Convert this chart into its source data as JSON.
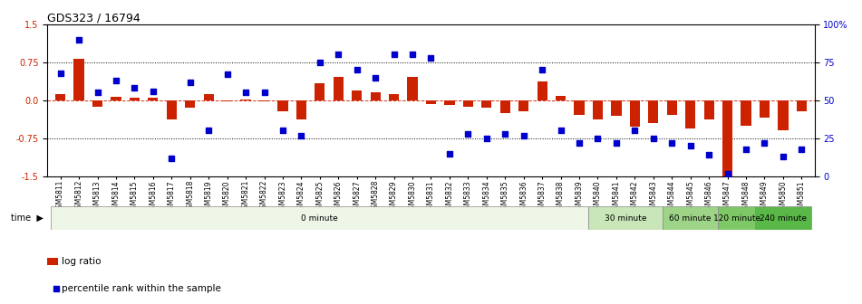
{
  "title": "GDS323 / 16794",
  "samples": [
    "GSM5811",
    "GSM5812",
    "GSM5813",
    "GSM5814",
    "GSM5815",
    "GSM5816",
    "GSM5817",
    "GSM5818",
    "GSM5819",
    "GSM5820",
    "GSM5821",
    "GSM5822",
    "GSM5823",
    "GSM5824",
    "GSM5825",
    "GSM5826",
    "GSM5827",
    "GSM5828",
    "GSM5829",
    "GSM5830",
    "GSM5831",
    "GSM5832",
    "GSM5833",
    "GSM5834",
    "GSM5835",
    "GSM5836",
    "GSM5837",
    "GSM5838",
    "GSM5839",
    "GSM5840",
    "GSM5841",
    "GSM5842",
    "GSM5843",
    "GSM5844",
    "GSM5845",
    "GSM5846",
    "GSM5847",
    "GSM5848",
    "GSM5849",
    "GSM5850",
    "GSM5851"
  ],
  "log_ratio": [
    0.12,
    0.82,
    -0.13,
    0.07,
    0.05,
    0.05,
    -0.38,
    -0.15,
    0.13,
    -0.02,
    0.02,
    -0.02,
    -0.22,
    -0.37,
    0.33,
    0.47,
    0.2,
    0.15,
    0.13,
    0.47,
    -0.08,
    -0.1,
    -0.12,
    -0.15,
    -0.25,
    -0.22,
    0.38,
    0.08,
    -0.28,
    -0.38,
    -0.3,
    -0.52,
    -0.45,
    -0.28,
    -0.55,
    -0.38,
    -1.5,
    -0.5,
    -0.35,
    -0.6,
    -0.22
  ],
  "percentile": [
    68,
    90,
    55,
    63,
    58,
    56,
    12,
    62,
    30,
    67,
    55,
    55,
    30,
    27,
    75,
    80,
    70,
    65,
    80,
    80,
    78,
    15,
    28,
    25,
    28,
    27,
    70,
    30,
    22,
    25,
    22,
    30,
    25,
    22,
    20,
    14,
    2,
    18,
    22,
    13,
    18
  ],
  "log_ratio_color": "#cc2200",
  "percentile_color": "#0000cc",
  "ylim": [
    -1.5,
    1.5
  ],
  "yticks_left": [
    -1.5,
    -0.75,
    0.0,
    0.75,
    1.5
  ],
  "yticks_right": [
    0,
    25,
    50,
    75,
    100
  ],
  "time_groups": [
    {
      "label": "0 minute",
      "start": 0,
      "end": 29,
      "color": "#eef6e8"
    },
    {
      "label": "30 minute",
      "start": 29,
      "end": 33,
      "color": "#c8e6b8"
    },
    {
      "label": "60 minute",
      "start": 33,
      "end": 36,
      "color": "#9ed488"
    },
    {
      "label": "120 minute",
      "start": 36,
      "end": 38,
      "color": "#7ec868"
    },
    {
      "label": "240 minute",
      "start": 38,
      "end": 41,
      "color": "#5ab848"
    }
  ],
  "bar_width": 0.55,
  "marker_size": 22
}
